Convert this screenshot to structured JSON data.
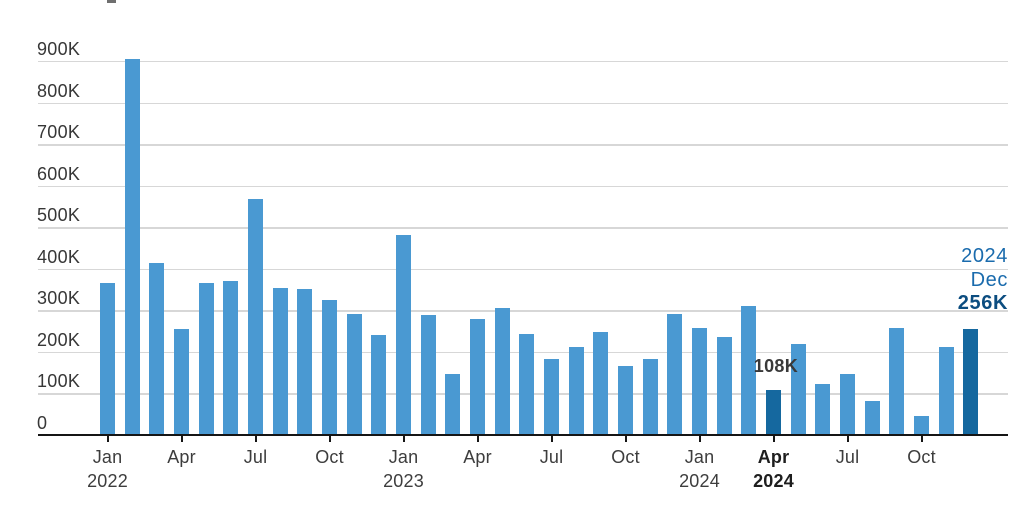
{
  "chart_data": {
    "type": "bar",
    "unit": "thousands",
    "x": [
      "Jan 2022",
      "Feb 2022",
      "Mar 2022",
      "Apr 2022",
      "May 2022",
      "Jun 2022",
      "Jul 2022",
      "Aug 2022",
      "Sep 2022",
      "Oct 2022",
      "Nov 2022",
      "Dec 2022",
      "Jan 2023",
      "Feb 2023",
      "Mar 2023",
      "Apr 2023",
      "May 2023",
      "Jun 2023",
      "Jul 2023",
      "Aug 2023",
      "Sep 2023",
      "Oct 2023",
      "Nov 2023",
      "Dec 2023",
      "Jan 2024",
      "Feb 2024",
      "Mar 2024",
      "Apr 2024",
      "May 2024",
      "Jun 2024",
      "Jul 2024",
      "Aug 2024",
      "Sep 2024",
      "Oct 2024",
      "Nov 2024",
      "Dec 2024"
    ],
    "values_thousands": [
      365,
      905,
      415,
      254,
      365,
      370,
      567,
      354,
      352,
      326,
      292,
      241,
      481,
      289,
      148,
      278,
      305,
      242,
      184,
      211,
      247,
      166,
      183,
      291,
      257,
      236,
      310,
      108,
      218,
      122,
      146,
      82,
      257,
      46,
      212,
      256
    ],
    "highlight_indices": [
      27,
      35
    ],
    "highlighted_labels": [
      "Apr 2024",
      "Dec 2024"
    ],
    "ylim_thousands": [
      0,
      900
    ],
    "grid": true,
    "legend": "none",
    "yticks": [
      {
        "label": "900K",
        "value": 900
      },
      {
        "label": "800K",
        "value": 800
      },
      {
        "label": "700K",
        "value": 700
      },
      {
        "label": "600K",
        "value": 600
      },
      {
        "label": "500K",
        "value": 500
      },
      {
        "label": "400K",
        "value": 400
      },
      {
        "label": "300K",
        "value": 300
      },
      {
        "label": "200K",
        "value": 200
      },
      {
        "label": "100K",
        "value": 100
      },
      {
        "label": "0",
        "value": 0
      }
    ],
    "xticks": [
      {
        "index": 0,
        "month": "Jan",
        "year": "2022",
        "bold": false
      },
      {
        "index": 3,
        "month": "Apr",
        "year": "",
        "bold": false
      },
      {
        "index": 6,
        "month": "Jul",
        "year": "",
        "bold": false
      },
      {
        "index": 9,
        "month": "Oct",
        "year": "",
        "bold": false
      },
      {
        "index": 12,
        "month": "Jan",
        "year": "2023",
        "bold": false
      },
      {
        "index": 15,
        "month": "Apr",
        "year": "",
        "bold": false
      },
      {
        "index": 18,
        "month": "Jul",
        "year": "",
        "bold": false
      },
      {
        "index": 21,
        "month": "Oct",
        "year": "",
        "bold": false
      },
      {
        "index": 24,
        "month": "Jan",
        "year": "2024",
        "bold": false
      },
      {
        "index": 27,
        "month": "Apr",
        "year": "2024",
        "bold": true
      },
      {
        "index": 30,
        "month": "Jul",
        "year": "",
        "bold": false
      },
      {
        "index": 33,
        "month": "Oct",
        "year": "",
        "bold": false
      }
    ],
    "annotations": {
      "apr_2024_label": "108K",
      "dec_2024_lines": [
        "2024",
        "Dec",
        "256K"
      ]
    },
    "colors": {
      "bar": "#4A99D2",
      "bar_highlight": "#15689F",
      "annotation_blue": "#1A6BAD",
      "annotation_dark_blue": "#0C4D80",
      "gridline": "#D7D7D7",
      "axis": "#151515",
      "label": "#3D3D3D"
    }
  }
}
